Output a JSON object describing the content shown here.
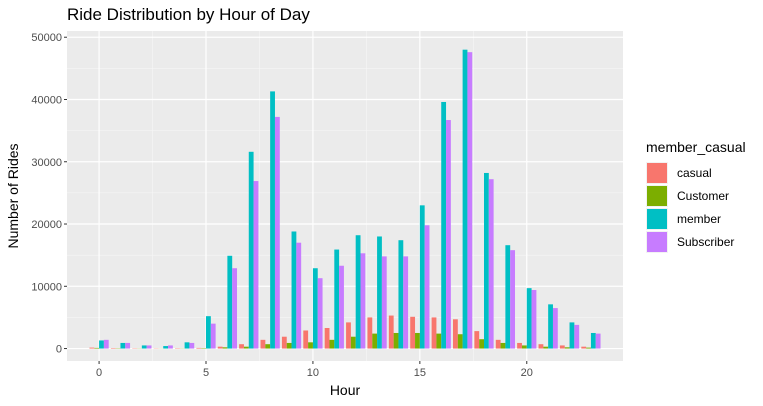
{
  "chart_data": {
    "type": "bar",
    "title": "Ride Distribution by Hour of Day",
    "xlabel": "Hour",
    "ylabel": "Number of Rides",
    "xlim": [
      -1.5,
      24.5
    ],
    "ylim": [
      -2000,
      51000
    ],
    "x_ticks": [
      0,
      5,
      10,
      15,
      20
    ],
    "y_ticks": [
      0,
      10000,
      20000,
      30000,
      40000,
      50000
    ],
    "y_tick_labels": [
      "0",
      "10000",
      "20000",
      "30000",
      "40000",
      "50000"
    ],
    "grid": true,
    "legend_position": "right",
    "legend_title": "member_casual",
    "x": [
      0,
      1,
      2,
      3,
      4,
      5,
      6,
      7,
      8,
      9,
      10,
      11,
      12,
      13,
      14,
      15,
      16,
      17,
      18,
      19,
      20,
      21,
      22,
      23
    ],
    "series": [
      {
        "name": "casual",
        "color": "#F8766D",
        "values": [
          150,
          80,
          50,
          40,
          60,
          100,
          300,
          700,
          1400,
          1900,
          2900,
          3300,
          4200,
          5000,
          5300,
          5100,
          5000,
          4700,
          2800,
          1400,
          900,
          700,
          500,
          300
        ]
      },
      {
        "name": "Customer",
        "color": "#7CAE00",
        "values": [
          100,
          50,
          30,
          20,
          30,
          70,
          200,
          300,
          700,
          900,
          1000,
          1400,
          1900,
          2400,
          2500,
          2500,
          2400,
          2300,
          1500,
          900,
          500,
          300,
          200,
          150
        ]
      },
      {
        "name": "member",
        "color": "#00BFC4",
        "values": [
          1300,
          900,
          500,
          400,
          1000,
          5200,
          14900,
          31600,
          41300,
          18800,
          12900,
          15900,
          18200,
          18000,
          17400,
          23000,
          39600,
          48000,
          28200,
          16600,
          9700,
          7100,
          4200,
          2500
        ]
      },
      {
        "name": "Subscriber",
        "color": "#C77CFF",
        "values": [
          1400,
          900,
          500,
          500,
          900,
          4000,
          12900,
          26900,
          37200,
          17000,
          11300,
          13300,
          15300,
          14800,
          14800,
          19800,
          36700,
          47600,
          27200,
          15800,
          9400,
          6500,
          3800,
          2400
        ]
      }
    ]
  }
}
